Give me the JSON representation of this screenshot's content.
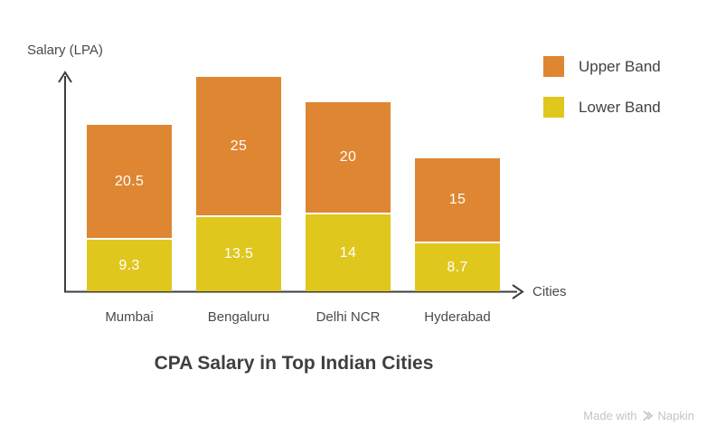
{
  "chart_data": {
    "type": "bar",
    "stacked": true,
    "title": "CPA Salary in Top Indian Cities",
    "xlabel": "Cities",
    "ylabel": "Salary (LPA)",
    "categories": [
      "Mumbai",
      "Bengaluru",
      "Delhi NCR",
      "Hyderabad"
    ],
    "series": [
      {
        "name": "Lower Band",
        "color": "#DFC71D",
        "values": [
          9.3,
          13.5,
          14,
          8.7
        ]
      },
      {
        "name": "Upper Band",
        "color": "#DE8632",
        "values": [
          20.5,
          25,
          20,
          15
        ]
      }
    ],
    "value_labels_shown": true,
    "value_label_color": "#FFFFFF",
    "axis_color": "#3D3D3D",
    "grid": false,
    "legend": [
      {
        "label": "Upper Band",
        "color": "#DE8632"
      },
      {
        "label": "Lower Band",
        "color": "#DFC71D"
      }
    ],
    "legend_position": "top-right"
  },
  "watermark": {
    "prefix": "Made with",
    "brand": "Napkin"
  }
}
